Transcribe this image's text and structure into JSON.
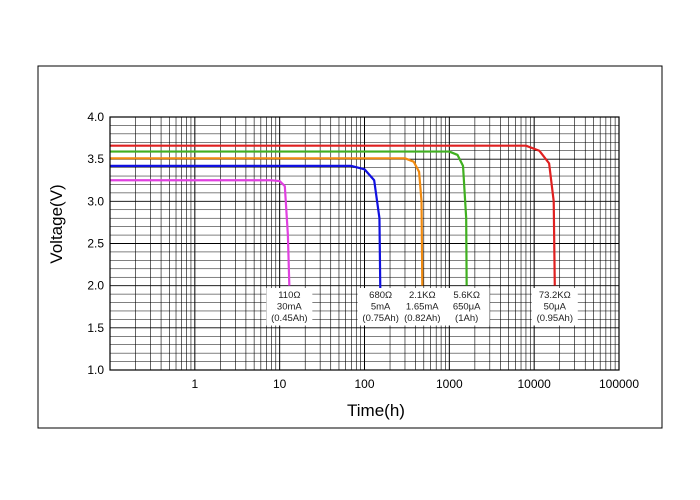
{
  "chart_data": {
    "type": "line",
    "xlabel": "Time(h)",
    "ylabel": "Voltage(V)",
    "x_scale": "log",
    "xlim": [
      0.1,
      100000
    ],
    "ylim": [
      1.0,
      4.0
    ],
    "x_ticks": [
      "1",
      "10",
      "100",
      "1000",
      "10000",
      "100000"
    ],
    "y_ticks": [
      "1.0",
      "1.5",
      "2.0",
      "2.5",
      "3.0",
      "3.5",
      "4.0"
    ],
    "grid": true,
    "colors": {
      "frame": "#000000",
      "grid": "#000000",
      "pink": "#e040e0",
      "blue": "#1010e0",
      "orange": "#f08a10",
      "green": "#40b020",
      "red": "#e02020"
    },
    "series": [
      {
        "color": "pink",
        "x": [
          0.1,
          8,
          10,
          11.5,
          12.5,
          13
        ],
        "y": [
          3.25,
          3.25,
          3.24,
          3.18,
          2.6,
          2.0
        ]
      },
      {
        "color": "blue",
        "x": [
          0.1,
          70,
          100,
          130,
          150,
          155
        ],
        "y": [
          3.42,
          3.42,
          3.38,
          3.25,
          2.8,
          1.6
        ]
      },
      {
        "color": "orange",
        "x": [
          0.1,
          300,
          380,
          440,
          470,
          480
        ],
        "y": [
          3.51,
          3.51,
          3.47,
          3.35,
          3.0,
          2.0
        ]
      },
      {
        "color": "green",
        "x": [
          0.1,
          1000,
          1250,
          1450,
          1580,
          1600
        ],
        "y": [
          3.59,
          3.59,
          3.55,
          3.42,
          2.8,
          2.0
        ]
      },
      {
        "color": "red",
        "x": [
          0.1,
          8000,
          11500,
          15000,
          17000,
          17500
        ],
        "y": [
          3.66,
          3.66,
          3.6,
          3.45,
          3.0,
          2.0
        ]
      }
    ],
    "annotations": [
      {
        "x": 13,
        "lines": [
          "110Ω",
          "30mA",
          "(0.45Ah)"
        ]
      },
      {
        "x": 155,
        "lines": [
          "680Ω",
          "5mA",
          "(0.75Ah)"
        ]
      },
      {
        "x": 480,
        "lines": [
          "2.1KΩ",
          "1.65mA",
          "(0.82Ah)"
        ]
      },
      {
        "x": 1600,
        "lines": [
          "5.6KΩ",
          "650μA",
          "(1Ah)"
        ]
      },
      {
        "x": 17500,
        "lines": [
          "73.2KΩ",
          "50μA",
          "(0.95Ah)"
        ]
      }
    ]
  }
}
